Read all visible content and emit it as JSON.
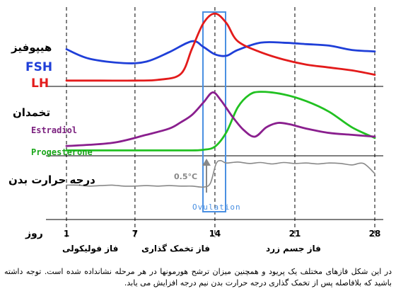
{
  "labels": {
    "pituitary": "هیپوفیز",
    "fsh": "FSH",
    "lh": "LH",
    "ovary": "تخمدان",
    "estradiol": "Estradiol",
    "progesterone": "Progesterone",
    "body_temp": "درجه حرارت بدن",
    "temp_rise": "0.5°C",
    "ovulation": "Ovulation",
    "day_axis_title": "روز"
  },
  "days": [
    "1",
    "7",
    "14",
    "21",
    "28"
  ],
  "phases": {
    "follicular": "فاز فولیکولی",
    "ovulation": "فاز تخمک گذاری",
    "luteal": "فاز جسم زرد"
  },
  "caption": "در این شکل فازهای مختلف یک پریود و همچنین میزان ترشح هورمونها در هر مرحله نشانداده شده است. توجه داشته باشید که بلافاصله پس از تخمک گذاری درجه حرارت بدن نیم درجه افزایش می یابد.",
  "colors": {
    "fsh": "#1f3fd8",
    "lh": "#e31b1b",
    "estradiol": "#8a1f8e",
    "progesterone": "#21c121",
    "temperature": "#888888",
    "ovulation_box": "#4a90e2",
    "estradiol_label": "#7a1f7e",
    "progesterone_label": "#1aa61a"
  },
  "curves": {
    "fsh": [
      [
        1,
        49
      ],
      [
        3,
        36
      ],
      [
        6,
        30
      ],
      [
        8,
        32
      ],
      [
        10,
        45
      ],
      [
        12,
        60
      ],
      [
        13,
        52
      ],
      [
        14,
        42
      ],
      [
        15,
        40
      ],
      [
        16,
        48
      ],
      [
        18,
        58
      ],
      [
        20,
        58
      ],
      [
        22,
        56
      ],
      [
        24,
        54
      ],
      [
        26,
        48
      ],
      [
        28,
        46
      ]
    ],
    "lh": [
      [
        1,
        6
      ],
      [
        4,
        6
      ],
      [
        7,
        6
      ],
      [
        9,
        7
      ],
      [
        11,
        15
      ],
      [
        12,
        50
      ],
      [
        13,
        85
      ],
      [
        14,
        98
      ],
      [
        15,
        85
      ],
      [
        16,
        60
      ],
      [
        18,
        45
      ],
      [
        20,
        35
      ],
      [
        22,
        28
      ],
      [
        24,
        24
      ],
      [
        26,
        20
      ],
      [
        28,
        14
      ]
    ],
    "estradiol": [
      [
        1,
        10
      ],
      [
        5,
        15
      ],
      [
        8,
        28
      ],
      [
        10,
        38
      ],
      [
        11,
        48
      ],
      [
        12,
        60
      ],
      [
        13,
        80
      ],
      [
        13.8,
        96
      ],
      [
        14.5,
        84
      ],
      [
        15.5,
        58
      ],
      [
        16.5,
        36
      ],
      [
        17.5,
        25
      ],
      [
        18.5,
        40
      ],
      [
        19.5,
        47
      ],
      [
        20.5,
        45
      ],
      [
        22,
        38
      ],
      [
        24,
        31
      ],
      [
        26,
        28
      ],
      [
        28,
        25
      ]
    ],
    "progesterone": [
      [
        1,
        3
      ],
      [
        4,
        3
      ],
      [
        7,
        3
      ],
      [
        10,
        3
      ],
      [
        12,
        3
      ],
      [
        13,
        4
      ],
      [
        14,
        9
      ],
      [
        15,
        32
      ],
      [
        16,
        72
      ],
      [
        17,
        92
      ],
      [
        18,
        97
      ],
      [
        20,
        93
      ],
      [
        22,
        82
      ],
      [
        24,
        65
      ],
      [
        26,
        40
      ],
      [
        28,
        23
      ]
    ],
    "temperature": [
      [
        1,
        42
      ],
      [
        2,
        42
      ],
      [
        3,
        40
      ],
      [
        4,
        41
      ],
      [
        5,
        42
      ],
      [
        6,
        40
      ],
      [
        7,
        40
      ],
      [
        8,
        41
      ],
      [
        9,
        40
      ],
      [
        10,
        41
      ],
      [
        11,
        40
      ],
      [
        12,
        40
      ],
      [
        13,
        38
      ],
      [
        13.6,
        46
      ],
      [
        14.1,
        86
      ],
      [
        14.5,
        93
      ],
      [
        15,
        88
      ],
      [
        16,
        90
      ],
      [
        17,
        87
      ],
      [
        18,
        89
      ],
      [
        19,
        86
      ],
      [
        20,
        89
      ],
      [
        21,
        87
      ],
      [
        22,
        88
      ],
      [
        23,
        86
      ],
      [
        24,
        88
      ],
      [
        25,
        87
      ],
      [
        26,
        84
      ],
      [
        27,
        87
      ],
      [
        28,
        66
      ]
    ]
  }
}
